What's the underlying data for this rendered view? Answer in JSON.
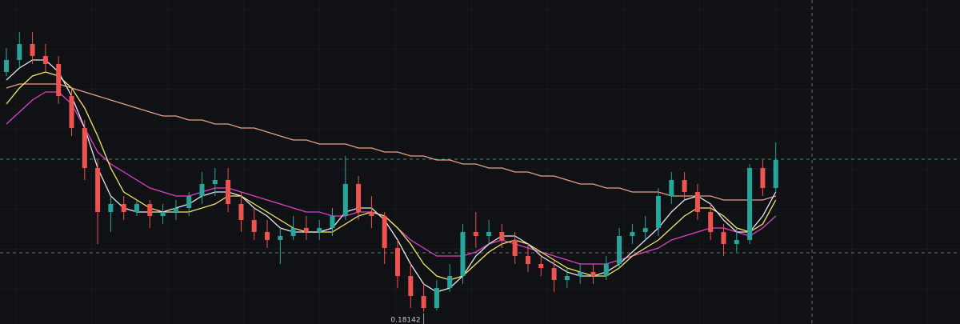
{
  "chart_data": {
    "type": "candlestick",
    "ylim": [
      0.1808,
      0.197
    ],
    "up_color": "#26a69a",
    "down_color": "#ef5350",
    "open": [
      0.1934,
      0.194,
      0.1948,
      0.1942,
      0.1938,
      0.1922,
      0.1906,
      0.1886,
      0.1864,
      0.1868,
      0.1864,
      0.1868,
      0.1862,
      0.1864,
      0.1866,
      0.1872,
      0.1878,
      0.188,
      0.1868,
      0.186,
      0.1854,
      0.185,
      0.1852,
      0.1856,
      0.1854,
      0.1856,
      0.1862,
      0.1878,
      0.1864,
      0.1862,
      0.1846,
      0.1832,
      0.1822,
      0.1816,
      0.1826,
      0.1832,
      0.1854,
      0.1852,
      0.1854,
      0.185,
      0.1842,
      0.1838,
      0.1836,
      0.183,
      0.1832,
      0.1834,
      0.1832,
      0.1838,
      0.1852,
      0.1854,
      0.1856,
      0.1872,
      0.188,
      0.1874,
      0.1864,
      0.1854,
      0.1848,
      0.185,
      0.1886,
      0.1876
    ],
    "high": [
      0.1946,
      0.1954,
      0.1954,
      0.1948,
      0.1942,
      0.1926,
      0.191,
      0.189,
      0.1872,
      0.1872,
      0.187,
      0.187,
      0.1868,
      0.187,
      0.1874,
      0.1884,
      0.1886,
      0.1886,
      0.1874,
      0.1866,
      0.186,
      0.1856,
      0.1862,
      0.1862,
      0.186,
      0.1866,
      0.1892,
      0.1882,
      0.1872,
      0.1864,
      0.185,
      0.1838,
      0.1828,
      0.183,
      0.1838,
      0.1858,
      0.1864,
      0.186,
      0.1858,
      0.1854,
      0.1848,
      0.1842,
      0.184,
      0.1836,
      0.1838,
      0.1838,
      0.1842,
      0.1856,
      0.1858,
      0.1862,
      0.1876,
      0.1884,
      0.1884,
      0.1878,
      0.1868,
      0.1858,
      0.1856,
      0.1888,
      0.189,
      0.18988
    ],
    "low": [
      0.1932,
      0.1936,
      0.1938,
      0.1934,
      0.1918,
      0.1902,
      0.188,
      0.1848,
      0.1854,
      0.186,
      0.1862,
      0.1856,
      0.1858,
      0.186,
      0.1862,
      0.1868,
      0.1872,
      0.1864,
      0.1854,
      0.185,
      0.1846,
      0.1838,
      0.185,
      0.185,
      0.185,
      0.1852,
      0.186,
      0.186,
      0.1856,
      0.1838,
      0.1826,
      0.1816,
      0.18142,
      0.18148,
      0.1824,
      0.1828,
      0.1846,
      0.1848,
      0.1846,
      0.1838,
      0.1834,
      0.1832,
      0.1824,
      0.1826,
      0.1828,
      0.1828,
      0.183,
      0.1836,
      0.1848,
      0.185,
      0.1852,
      0.1868,
      0.187,
      0.186,
      0.185,
      0.1842,
      0.1844,
      0.1848,
      0.1872,
      0.1874
    ],
    "close": [
      0.194,
      0.1948,
      0.1942,
      0.1938,
      0.1922,
      0.1906,
      0.1886,
      0.1864,
      0.1868,
      0.1864,
      0.1868,
      0.1862,
      0.1864,
      0.1866,
      0.1872,
      0.1878,
      0.188,
      0.1868,
      0.186,
      0.1854,
      0.185,
      0.1852,
      0.1856,
      0.1854,
      0.1856,
      0.1862,
      0.1878,
      0.1864,
      0.1862,
      0.1846,
      0.1832,
      0.1822,
      0.1816,
      0.1826,
      0.1832,
      0.1854,
      0.1852,
      0.1854,
      0.185,
      0.1842,
      0.1838,
      0.1836,
      0.183,
      0.1832,
      0.1834,
      0.1832,
      0.1838,
      0.1852,
      0.1854,
      0.1856,
      0.1872,
      0.188,
      0.1874,
      0.1864,
      0.1854,
      0.1848,
      0.185,
      0.1886,
      0.1876,
      0.189
    ],
    "series": [
      {
        "color": "#e8a088",
        "values": [
          0.1926,
          0.1928,
          0.1928,
          0.1928,
          0.1928,
          0.1926,
          0.1924,
          0.1922,
          0.192,
          0.1918,
          0.1916,
          0.1914,
          0.1912,
          0.1912,
          0.191,
          0.191,
          0.1908,
          0.1908,
          0.1906,
          0.1906,
          0.1904,
          0.1902,
          0.19,
          0.19,
          0.1898,
          0.1898,
          0.1898,
          0.1896,
          0.1896,
          0.1894,
          0.1894,
          0.1892,
          0.1892,
          0.189,
          0.189,
          0.1888,
          0.1888,
          0.1886,
          0.1886,
          0.1884,
          0.1884,
          0.1882,
          0.1882,
          0.188,
          0.1878,
          0.1878,
          0.1876,
          0.1876,
          0.1874,
          0.1874,
          0.1874,
          0.1872,
          0.1872,
          0.1872,
          0.1872,
          0.187,
          0.187,
          0.187,
          0.187,
          0.1872
        ]
      },
      {
        "color": "#e040c8",
        "values": [
          0.1908,
          0.1914,
          0.192,
          0.1924,
          0.1924,
          0.1918,
          0.1906,
          0.1894,
          0.1888,
          0.1884,
          0.188,
          0.1876,
          0.1874,
          0.1872,
          0.1872,
          0.1874,
          0.1876,
          0.1876,
          0.1874,
          0.1872,
          0.187,
          0.1868,
          0.1866,
          0.1864,
          0.1864,
          0.1862,
          0.1862,
          0.1864,
          0.1864,
          0.1862,
          0.1856,
          0.185,
          0.1846,
          0.1842,
          0.1842,
          0.1842,
          0.1844,
          0.1848,
          0.185,
          0.1848,
          0.1846,
          0.1844,
          0.1842,
          0.184,
          0.1838,
          0.1838,
          0.1838,
          0.184,
          0.1842,
          0.1844,
          0.1846,
          0.185,
          0.1852,
          0.1854,
          0.1856,
          0.1856,
          0.1854,
          0.1852,
          0.1856,
          0.1862
        ]
      },
      {
        "color": "#f5e663",
        "values": [
          0.1918,
          0.1926,
          0.1932,
          0.1934,
          0.1932,
          0.1926,
          0.1916,
          0.1902,
          0.1886,
          0.1874,
          0.187,
          0.1866,
          0.1864,
          0.1864,
          0.1864,
          0.1866,
          0.1868,
          0.1872,
          0.1872,
          0.1868,
          0.1864,
          0.186,
          0.1856,
          0.1854,
          0.1854,
          0.1854,
          0.1858,
          0.1862,
          0.1864,
          0.1862,
          0.1856,
          0.1848,
          0.1838,
          0.1832,
          0.183,
          0.1832,
          0.1838,
          0.1844,
          0.1848,
          0.185,
          0.1848,
          0.1844,
          0.184,
          0.1836,
          0.1834,
          0.1832,
          0.1832,
          0.1836,
          0.1842,
          0.1846,
          0.185,
          0.1856,
          0.1862,
          0.1866,
          0.1866,
          0.1862,
          0.1856,
          0.1854,
          0.1858,
          0.187
        ]
      },
      {
        "color": "#e6e6f0",
        "values": [
          0.193,
          0.1936,
          0.194,
          0.194,
          0.1934,
          0.1922,
          0.1906,
          0.1886,
          0.1872,
          0.1866,
          0.1864,
          0.1864,
          0.1864,
          0.1866,
          0.1868,
          0.1872,
          0.1874,
          0.1874,
          0.1872,
          0.1866,
          0.1862,
          0.1856,
          0.1854,
          0.1854,
          0.1854,
          0.1856,
          0.1864,
          0.1866,
          0.1866,
          0.186,
          0.185,
          0.1838,
          0.1828,
          0.1824,
          0.1826,
          0.1832,
          0.1842,
          0.1848,
          0.1852,
          0.1852,
          0.1848,
          0.1842,
          0.1838,
          0.1834,
          0.1832,
          0.1832,
          0.1834,
          0.1838,
          0.1844,
          0.185,
          0.1856,
          0.1864,
          0.187,
          0.1872,
          0.1868,
          0.186,
          0.1854,
          0.1854,
          0.1862,
          0.1874
        ]
      }
    ]
  }
}
